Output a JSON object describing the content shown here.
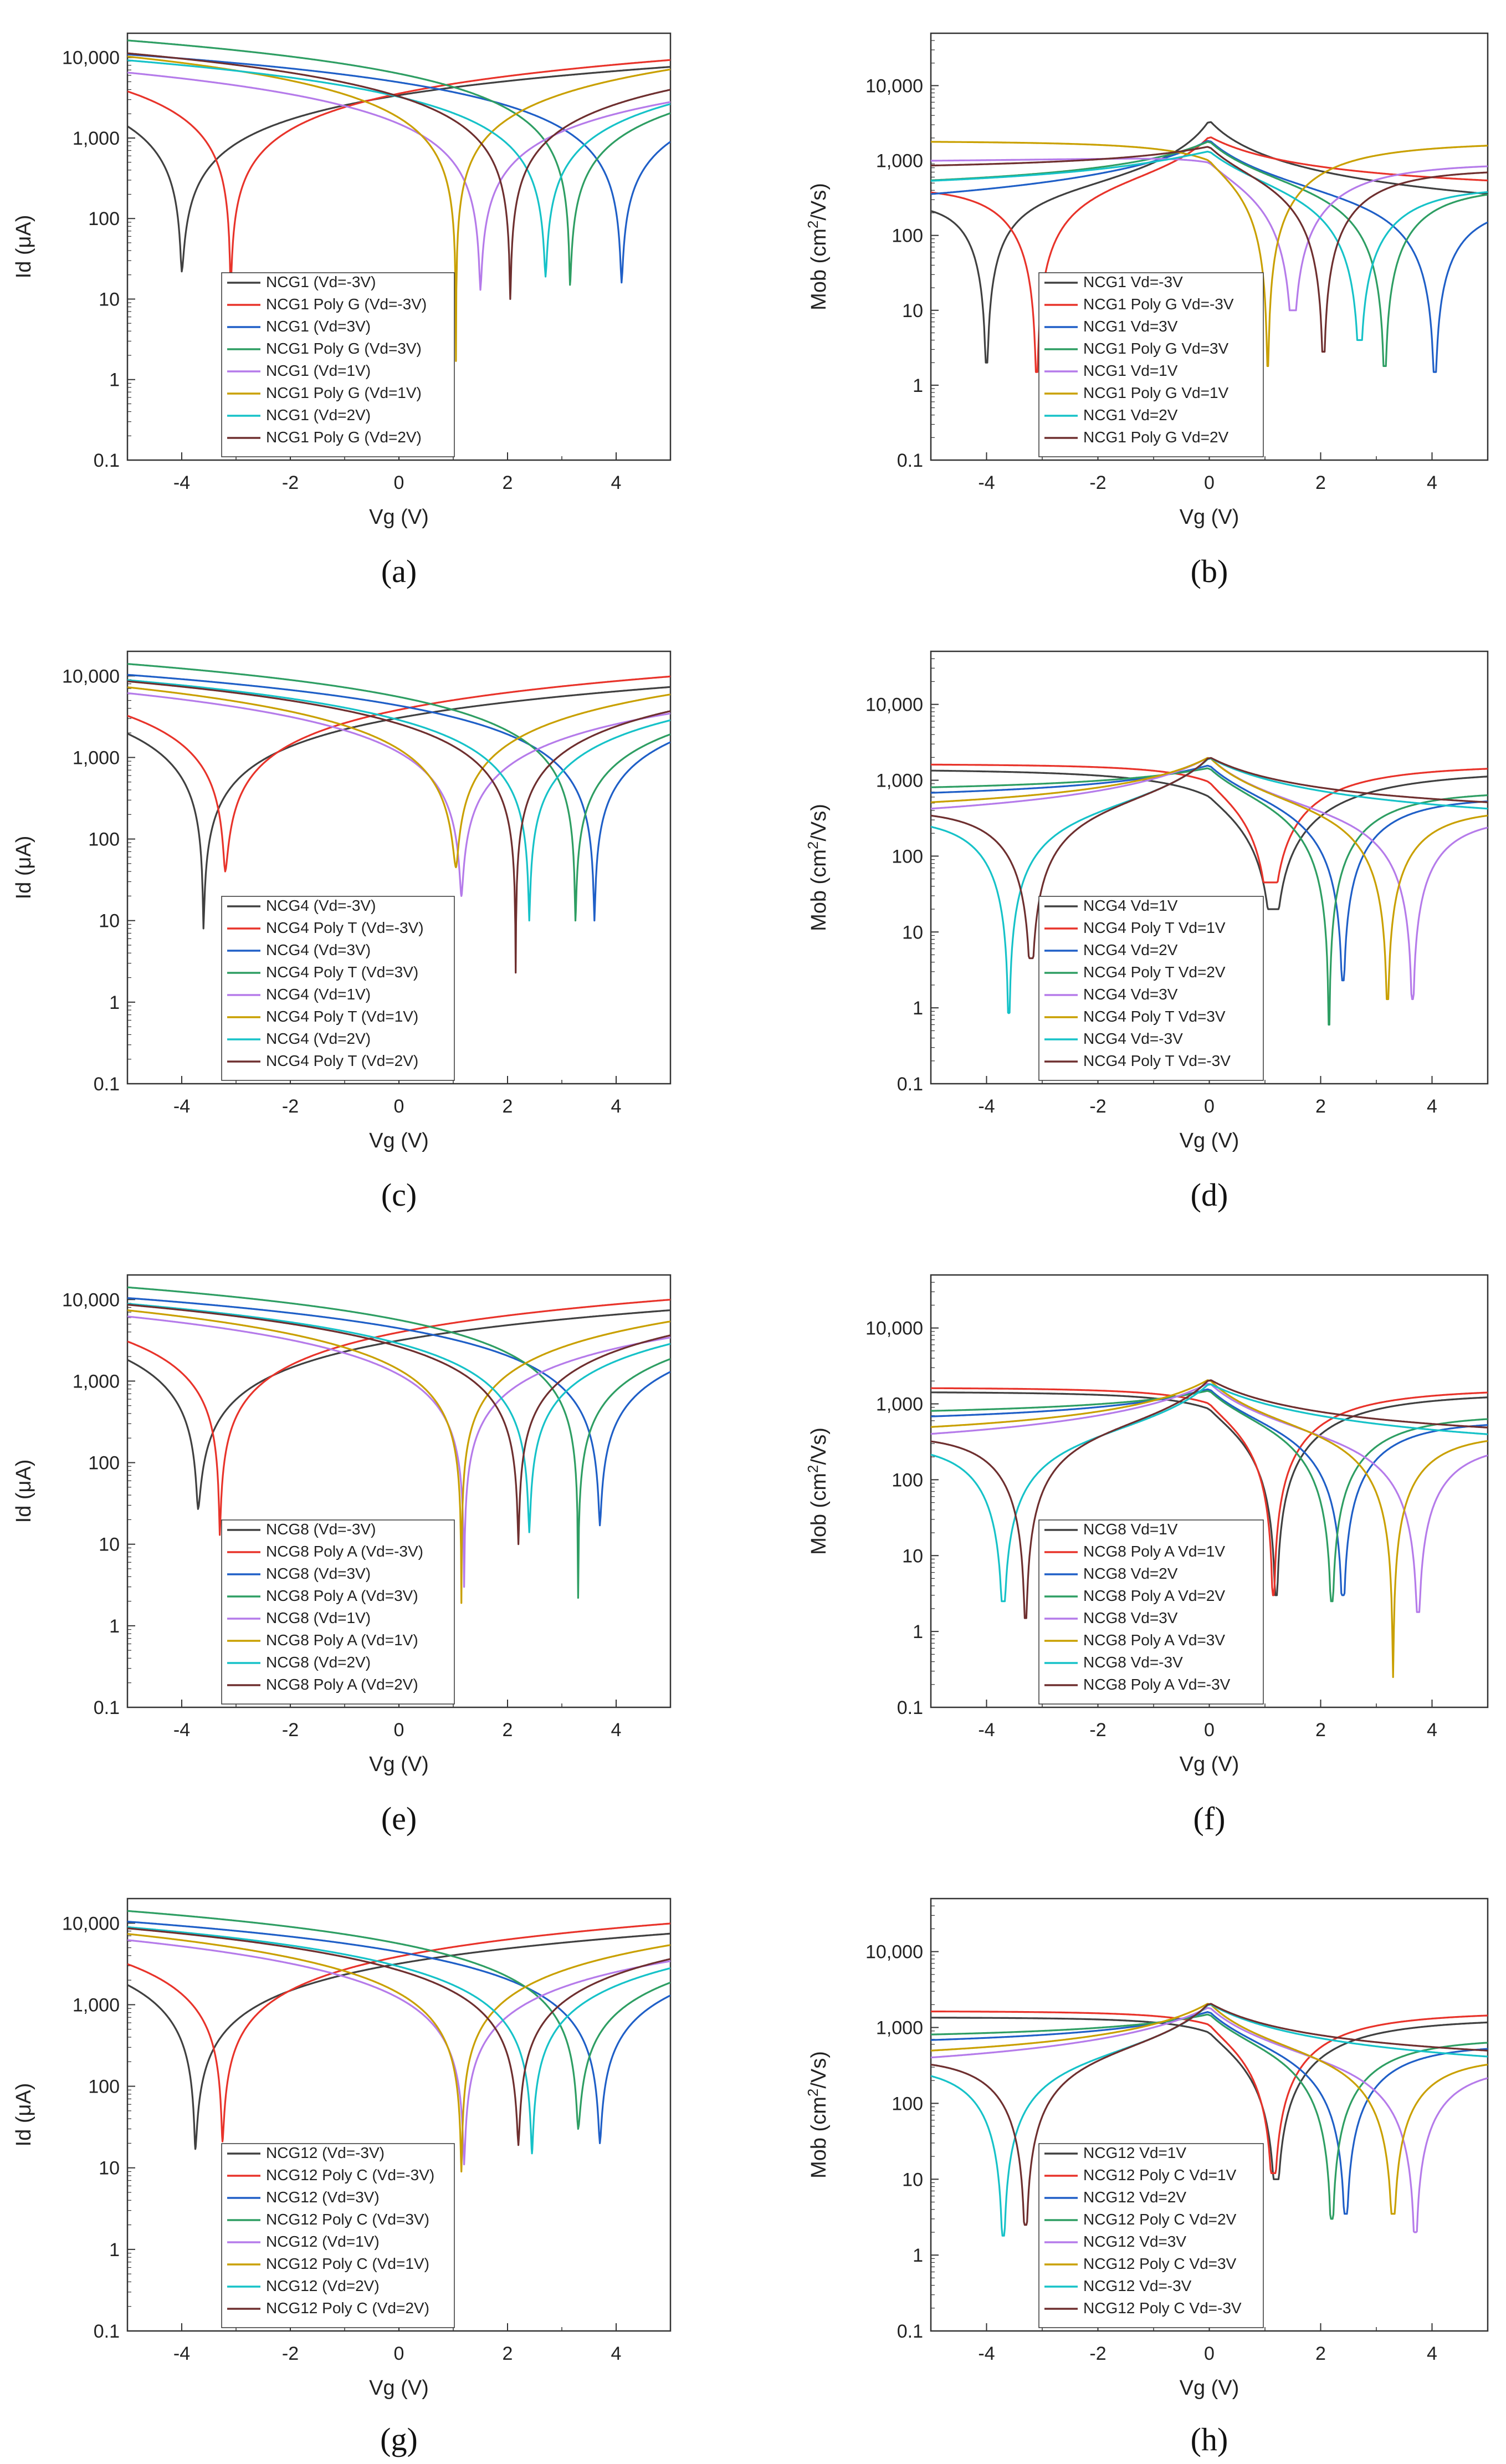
{
  "figure": {
    "panels_layout": "4 rows x 2 columns",
    "note": ""
  },
  "chart_data": [
    {
      "id": "a",
      "caption": "(a)",
      "type": "line",
      "xlabel": "Vg (V)",
      "ylabel": "Id (μA)",
      "yscale": "log",
      "xlim": [
        -5,
        5
      ],
      "ylim": [
        0.1,
        20000
      ],
      "xticks": [
        -4,
        -2,
        0,
        2,
        4
      ],
      "xtick_labels": [
        "-4",
        "-2",
        "0",
        "2",
        "4"
      ],
      "yticks": [
        0.1,
        1,
        10,
        100,
        1000,
        10000
      ],
      "ytick_labels": [
        "0.1",
        "1",
        "10",
        "100",
        "1,000",
        "10,000"
      ],
      "legend_position": "bottom-center",
      "series": [
        {
          "name": "NCG1 (Vd=-3V)",
          "color": "#404040",
          "shape": "id",
          "v0": -4.0,
          "a": 1400,
          "b": 850,
          "min": 22
        },
        {
          "name": "NCG1 Poly G (Vd=-3V)",
          "color": "#e8332a",
          "shape": "id",
          "v0": -3.1,
          "a": 2000,
          "b": 1150,
          "min": 13
        },
        {
          "name": "NCG1 (Vd=3V)",
          "color": "#1f5fc7",
          "shape": "id",
          "v0": 4.1,
          "a": 1200,
          "b": 1000,
          "min": 16
        },
        {
          "name": "NCG1 Poly G (Vd=3V)",
          "color": "#2e9e63",
          "shape": "id",
          "v0": 3.15,
          "a": 2000,
          "b": 1100,
          "min": 15
        },
        {
          "name": "NCG1 (Vd=1V)",
          "color": "#b57bea",
          "shape": "id",
          "v0": 1.5,
          "a": 1000,
          "b": 800,
          "min": 13
        },
        {
          "name": "NCG1 Poly G (Vd=1V)",
          "color": "#c9a000",
          "shape": "id",
          "v0": 1.05,
          "a": 1700,
          "b": 1800,
          "min": 1.7
        },
        {
          "name": "NCG1 (Vd=2V)",
          "color": "#16c2c8",
          "shape": "id",
          "v0": 2.7,
          "a": 1200,
          "b": 1150,
          "min": 19
        },
        {
          "name": "NCG1 Poly G (Vd=2V)",
          "color": "#6e2f2f",
          "shape": "id",
          "v0": 2.05,
          "a": 1600,
          "b": 1350,
          "min": 10
        }
      ]
    },
    {
      "id": "b",
      "caption": "(b)",
      "type": "line",
      "xlabel": "Vg (V)",
      "ylabel": "Mob (cm²/Vs)",
      "ylabel_main": "Mob (cm",
      "ylabel_sup": "2",
      "ylabel_end": "/Vs)",
      "yscale": "log",
      "xlim": [
        -5,
        5
      ],
      "ylim": [
        0.1,
        50000
      ],
      "xticks": [
        -4,
        -2,
        0,
        2,
        4
      ],
      "xtick_labels": [
        "-4",
        "-2",
        "0",
        "2",
        "4"
      ],
      "yticks": [
        0.1,
        1,
        10,
        100,
        1000,
        10000
      ],
      "ytick_labels": [
        "0.1",
        "1",
        "10",
        "100",
        "1,000",
        "10,000"
      ],
      "legend_position": "bottom-center",
      "series": [
        {
          "name": "NCG1 Vd=-3V",
          "color": "#404040",
          "shape": "mob",
          "v0": -4.0,
          "plat": 70,
          "far": 1500,
          "min": 2
        },
        {
          "name": "NCG1 Poly G Vd=-3V",
          "color": "#e8332a",
          "shape": "mob",
          "v0": -3.1,
          "plat": 280,
          "far": 1300,
          "min": 1.5
        },
        {
          "name": "NCG1 Vd=3V",
          "color": "#1f5fc7",
          "shape": "mob",
          "v0": 4.05,
          "plat": 80,
          "far": 800,
          "min": 1.5
        },
        {
          "name": "NCG1 Poly G Vd=3V",
          "color": "#2e9e63",
          "shape": "mob",
          "v0": 3.15,
          "plat": 290,
          "far": 1100,
          "min": 1.8
        },
        {
          "name": "NCG1 Vd=1V",
          "color": "#b57bea",
          "shape": "mob",
          "v0": 1.5,
          "plat": 850,
          "far": 1600,
          "min": 10
        },
        {
          "name": "NCG1 Poly G Vd=1V",
          "color": "#c9a000",
          "shape": "mob",
          "v0": 1.05,
          "plat": 1800,
          "far": 2800,
          "min": 1.8
        },
        {
          "name": "NCG1 Vd=2V",
          "color": "#16c2c8",
          "shape": "mob",
          "v0": 2.7,
          "plat": 290,
          "far": 1000,
          "min": 4
        },
        {
          "name": "NCG1 Poly G Vd=2V",
          "color": "#6e2f2f",
          "shape": "mob",
          "v0": 2.05,
          "plat": 650,
          "far": 1700,
          "min": 2.8
        }
      ]
    },
    {
      "id": "c",
      "caption": "(c)",
      "type": "line",
      "xlabel": "Vg (V)",
      "ylabel": "Id (μA)",
      "yscale": "log",
      "xlim": [
        -5,
        5
      ],
      "ylim": [
        0.1,
        20000
      ],
      "xticks": [
        -4,
        -2,
        0,
        2,
        4
      ],
      "xtick_labels": [
        "-4",
        "-2",
        "0",
        "2",
        "4"
      ],
      "yticks": [
        0.1,
        1,
        10,
        100,
        1000,
        10000
      ],
      "ytick_labels": [
        "0.1",
        "1",
        "10",
        "100",
        "1,000",
        "10,000"
      ],
      "legend_position": "bottom-center",
      "series": [
        {
          "name": "NCG4 (Vd=-3V)",
          "color": "#404040",
          "shape": "id",
          "v0": -3.6,
          "a": 1400,
          "b": 850,
          "min": 8
        },
        {
          "name": "NCG4 Poly T (Vd=-3V)",
          "color": "#e8332a",
          "shape": "id",
          "v0": -3.2,
          "a": 1800,
          "b": 1200,
          "min": 40
        },
        {
          "name": "NCG4 (Vd=3V)",
          "color": "#1f5fc7",
          "shape": "id",
          "v0": 3.6,
          "a": 1200,
          "b": 1100,
          "min": 10
        },
        {
          "name": "NCG4 Poly T (Vd=3V)",
          "color": "#2e9e63",
          "shape": "id",
          "v0": 3.25,
          "a": 1700,
          "b": 1100,
          "min": 10
        },
        {
          "name": "NCG4 (Vd=1V)",
          "color": "#b57bea",
          "shape": "id",
          "v0": 1.15,
          "a": 1000,
          "b": 900,
          "min": 20
        },
        {
          "name": "NCG4 Poly T (Vd=1V)",
          "color": "#c9a000",
          "shape": "id",
          "v0": 1.05,
          "a": 1200,
          "b": 1500,
          "min": 45
        },
        {
          "name": "NCG4 (Vd=2V)",
          "color": "#16c2c8",
          "shape": "id",
          "v0": 2.4,
          "a": 1200,
          "b": 1100,
          "min": 10
        },
        {
          "name": "NCG4 Poly T (Vd=2V)",
          "color": "#6e2f2f",
          "shape": "id",
          "v0": 2.15,
          "a": 1200,
          "b": 1300,
          "min": 2.3
        }
      ]
    },
    {
      "id": "d",
      "caption": "(d)",
      "type": "line",
      "xlabel": "Vg (V)",
      "ylabel": "Mob (cm²/Vs)",
      "ylabel_main": "Mob (cm",
      "ylabel_sup": "2",
      "ylabel_end": "/Vs)",
      "yscale": "log",
      "xlim": [
        -5,
        5
      ],
      "ylim": [
        0.1,
        50000
      ],
      "xticks": [
        -4,
        -2,
        0,
        2,
        4
      ],
      "xtick_labels": [
        "-4",
        "-2",
        "0",
        "2",
        "4"
      ],
      "yticks": [
        0.1,
        1,
        10,
        100,
        1000,
        10000
      ],
      "ytick_labels": [
        "0.1",
        "1",
        "10",
        "100",
        "1,000",
        "10,000"
      ],
      "legend_position": "bottom-center",
      "series": [
        {
          "name": "NCG4 Vd=1V",
          "color": "#404040",
          "shape": "mob",
          "v0": 1.15,
          "plat": 1400,
          "far": 1500,
          "min": 20
        },
        {
          "name": "NCG4 Poly T Vd=1V",
          "color": "#e8332a",
          "shape": "mob",
          "v0": 1.1,
          "plat": 1600,
          "far": 2500,
          "min": 45
        },
        {
          "name": "NCG4 Vd=2V",
          "color": "#1f5fc7",
          "shape": "mob",
          "v0": 2.4,
          "plat": 450,
          "far": 1400,
          "min": 2.3
        },
        {
          "name": "NCG4 Poly T Vd=2V",
          "color": "#2e9e63",
          "shape": "mob",
          "v0": 2.15,
          "plat": 600,
          "far": 1500,
          "min": 0.6
        },
        {
          "name": "NCG4 Vd=3V",
          "color": "#b57bea",
          "shape": "mob",
          "v0": 3.65,
          "plat": 150,
          "far": 1000,
          "min": 1.3
        },
        {
          "name": "NCG4 Poly T Vd=3V",
          "color": "#c9a000",
          "shape": "mob",
          "v0": 3.2,
          "plat": 250,
          "far": 1200,
          "min": 1.3
        },
        {
          "name": "NCG4 Vd=-3V",
          "color": "#16c2c8",
          "shape": "mob",
          "v0": -3.6,
          "plat": 150,
          "far": 1000,
          "min": 0.85
        },
        {
          "name": "NCG4 Poly T Vd=-3V",
          "color": "#6e2f2f",
          "shape": "mob",
          "v0": -3.2,
          "plat": 250,
          "far": 1200,
          "min": 4.5
        }
      ]
    },
    {
      "id": "e",
      "caption": "(e)",
      "type": "line",
      "xlabel": "Vg (V)",
      "ylabel": "Id (μA)",
      "yscale": "log",
      "xlim": [
        -5,
        5
      ],
      "ylim": [
        0.1,
        20000
      ],
      "xticks": [
        -4,
        -2,
        0,
        2,
        4
      ],
      "xtick_labels": [
        "-4",
        "-2",
        "0",
        "2",
        "4"
      ],
      "yticks": [
        0.1,
        1,
        10,
        100,
        1000,
        10000
      ],
      "ytick_labels": [
        "0.1",
        "1",
        "10",
        "100",
        "1,000",
        "10,000"
      ],
      "legend_position": "bottom-center",
      "series": [
        {
          "name": "NCG8 (Vd=-3V)",
          "color": "#404040",
          "shape": "id",
          "v0": -3.7,
          "a": 1400,
          "b": 850,
          "min": 27
        },
        {
          "name": "NCG8 Poly A (Vd=-3V)",
          "color": "#e8332a",
          "shape": "id",
          "v0": -3.3,
          "a": 1800,
          "b": 1200,
          "min": 13
        },
        {
          "name": "NCG8 (Vd=3V)",
          "color": "#1f5fc7",
          "shape": "id",
          "v0": 3.7,
          "a": 1200,
          "b": 1000,
          "min": 17
        },
        {
          "name": "NCG8 Poly A (Vd=3V)",
          "color": "#2e9e63",
          "shape": "id",
          "v0": 3.3,
          "a": 1700,
          "b": 1100,
          "min": 2.2
        },
        {
          "name": "NCG8 (Vd=1V)",
          "color": "#b57bea",
          "shape": "id",
          "v0": 1.2,
          "a": 1000,
          "b": 900,
          "min": 3
        },
        {
          "name": "NCG8 Poly A (Vd=1V)",
          "color": "#c9a000",
          "shape": "id",
          "v0": 1.15,
          "a": 1200,
          "b": 1400,
          "min": 1.9
        },
        {
          "name": "NCG8 (Vd=2V)",
          "color": "#16c2c8",
          "shape": "id",
          "v0": 2.4,
          "a": 1200,
          "b": 1100,
          "min": 14
        },
        {
          "name": "NCG8 Poly A (Vd=2V)",
          "color": "#6e2f2f",
          "shape": "id",
          "v0": 2.2,
          "a": 1200,
          "b": 1300,
          "min": 10
        }
      ]
    },
    {
      "id": "f",
      "caption": "(f)",
      "type": "line",
      "xlabel": "Vg (V)",
      "ylabel": "Mob (cm²/Vs)",
      "ylabel_main": "Mob (cm",
      "ylabel_sup": "2",
      "ylabel_end": "/Vs)",
      "yscale": "log",
      "xlim": [
        -5,
        5
      ],
      "ylim": [
        0.1,
        50000
      ],
      "xticks": [
        -4,
        -2,
        0,
        2,
        4
      ],
      "xtick_labels": [
        "-4",
        "-2",
        "0",
        "2",
        "4"
      ],
      "yticks": [
        0.1,
        1,
        10,
        100,
        1000,
        10000
      ],
      "ytick_labels": [
        "0.1",
        "1",
        "10",
        "100",
        "1,000",
        "10,000"
      ],
      "legend_position": "bottom-center",
      "series": [
        {
          "name": "NCG8 Vd=1V",
          "color": "#404040",
          "shape": "mob",
          "v0": 1.2,
          "plat": 1400,
          "far": 2000,
          "min": 3
        },
        {
          "name": "NCG8 Poly A Vd=1V",
          "color": "#e8332a",
          "shape": "mob",
          "v0": 1.15,
          "plat": 1600,
          "far": 2500,
          "min": 3
        },
        {
          "name": "NCG8 Vd=2V",
          "color": "#1f5fc7",
          "shape": "mob",
          "v0": 2.4,
          "plat": 450,
          "far": 1400,
          "min": 3
        },
        {
          "name": "NCG8 Poly A Vd=2V",
          "color": "#2e9e63",
          "shape": "mob",
          "v0": 2.2,
          "plat": 600,
          "far": 1500,
          "min": 2.5
        },
        {
          "name": "NCG8 Vd=3V",
          "color": "#b57bea",
          "shape": "mob",
          "v0": 3.75,
          "plat": 130,
          "far": 900,
          "min": 1.8
        },
        {
          "name": "NCG8 Poly A Vd=3V",
          "color": "#c9a000",
          "shape": "mob",
          "v0": 3.3,
          "plat": 230,
          "far": 1200,
          "min": 0.25
        },
        {
          "name": "NCG8 Vd=-3V",
          "color": "#16c2c8",
          "shape": "mob",
          "v0": -3.7,
          "plat": 125,
          "far": 900,
          "min": 2.5
        },
        {
          "name": "NCG8 Poly A Vd=-3V",
          "color": "#6e2f2f",
          "shape": "mob",
          "v0": -3.3,
          "plat": 220,
          "far": 1200,
          "min": 1.5
        }
      ]
    },
    {
      "id": "g",
      "caption": "(g)",
      "type": "line",
      "xlabel": "Vg (V)",
      "ylabel": "Id (μA)",
      "yscale": "log",
      "xlim": [
        -5,
        5
      ],
      "ylim": [
        0.1,
        20000
      ],
      "xticks": [
        -4,
        -2,
        0,
        2,
        4
      ],
      "xtick_labels": [
        "-4",
        "-2",
        "0",
        "2",
        "4"
      ],
      "yticks": [
        0.1,
        1,
        10,
        100,
        1000,
        10000
      ],
      "ytick_labels": [
        "0.1",
        "1",
        "10",
        "100",
        "1,000",
        "10,000"
      ],
      "legend_position": "bottom-center",
      "series": [
        {
          "name": "NCG12 (Vd=-3V)",
          "color": "#404040",
          "shape": "id",
          "v0": -3.75,
          "a": 1400,
          "b": 850,
          "min": 17
        },
        {
          "name": "NCG12 Poly C (Vd=-3V)",
          "color": "#e8332a",
          "shape": "id",
          "v0": -3.25,
          "a": 1800,
          "b": 1200,
          "min": 21
        },
        {
          "name": "NCG12 (Vd=3V)",
          "color": "#1f5fc7",
          "shape": "id",
          "v0": 3.7,
          "a": 1200,
          "b": 1000,
          "min": 20
        },
        {
          "name": "NCG12 Poly C (Vd=3V)",
          "color": "#2e9e63",
          "shape": "id",
          "v0": 3.3,
          "a": 1700,
          "b": 1100,
          "min": 30
        },
        {
          "name": "NCG12 (Vd=1V)",
          "color": "#b57bea",
          "shape": "id",
          "v0": 1.2,
          "a": 1000,
          "b": 900,
          "min": 11
        },
        {
          "name": "NCG12 Poly C (Vd=1V)",
          "color": "#c9a000",
          "shape": "id",
          "v0": 1.15,
          "a": 1200,
          "b": 1400,
          "min": 9
        },
        {
          "name": "NCG12 (Vd=2V)",
          "color": "#16c2c8",
          "shape": "id",
          "v0": 2.45,
          "a": 1200,
          "b": 1100,
          "min": 15
        },
        {
          "name": "NCG12 Poly C (Vd=2V)",
          "color": "#6e2f2f",
          "shape": "id",
          "v0": 2.2,
          "a": 1200,
          "b": 1300,
          "min": 19
        }
      ]
    },
    {
      "id": "h",
      "caption": "(h)",
      "type": "line",
      "xlabel": "Vg (V)",
      "ylabel": "Mob (cm²/Vs)",
      "ylabel_main": "Mob (cm",
      "ylabel_sup": "2",
      "ylabel_end": "/Vs)",
      "yscale": "log",
      "xlim": [
        -5,
        5
      ],
      "ylim": [
        0.1,
        50000
      ],
      "xticks": [
        -4,
        -2,
        0,
        2,
        4
      ],
      "xtick_labels": [
        "-4",
        "-2",
        "0",
        "2",
        "4"
      ],
      "yticks": [
        0.1,
        1,
        10,
        100,
        1000,
        10000
      ],
      "ytick_labels": [
        "0.1",
        "1",
        "10",
        "100",
        "1,000",
        "10,000"
      ],
      "legend_position": "bottom-center",
      "series": [
        {
          "name": "NCG12 Vd=1V",
          "color": "#404040",
          "shape": "mob",
          "v0": 1.2,
          "plat": 1300,
          "far": 2000,
          "min": 10
        },
        {
          "name": "NCG12 Poly C Vd=1V",
          "color": "#e8332a",
          "shape": "mob",
          "v0": 1.15,
          "plat": 1600,
          "far": 2700,
          "min": 12
        },
        {
          "name": "NCG12 Vd=2V",
          "color": "#1f5fc7",
          "shape": "mob",
          "v0": 2.45,
          "plat": 450,
          "far": 1400,
          "min": 3.5
        },
        {
          "name": "NCG12 Poly C Vd=2V",
          "color": "#2e9e63",
          "shape": "mob",
          "v0": 2.2,
          "plat": 600,
          "far": 1500,
          "min": 3
        },
        {
          "name": "NCG12 Vd=3V",
          "color": "#b57bea",
          "shape": "mob",
          "v0": 3.7,
          "plat": 130,
          "far": 900,
          "min": 2
        },
        {
          "name": "NCG12 Poly C Vd=3V",
          "color": "#c9a000",
          "shape": "mob",
          "v0": 3.3,
          "plat": 230,
          "far": 1200,
          "min": 3.5
        },
        {
          "name": "NCG12 Vd=-3V",
          "color": "#16c2c8",
          "shape": "mob",
          "v0": -3.7,
          "plat": 140,
          "far": 1000,
          "min": 1.8
        },
        {
          "name": "NCG12 Poly C Vd=-3V",
          "color": "#6e2f2f",
          "shape": "mob",
          "v0": -3.3,
          "plat": 230,
          "far": 1200,
          "min": 2.5
        }
      ]
    }
  ]
}
